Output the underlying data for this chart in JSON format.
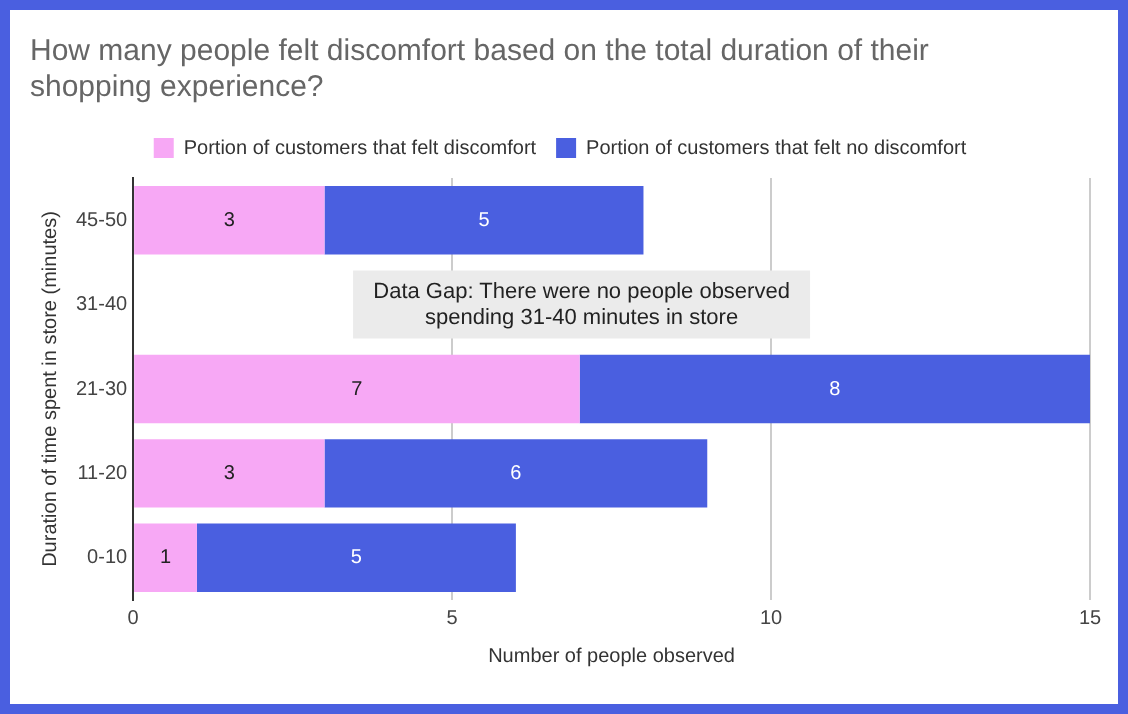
{
  "chart_data": {
    "type": "bar",
    "orientation": "horizontal",
    "stacked": true,
    "title": "How many people felt discomfort based on the total duration of their shopping experience?",
    "xlabel": "Number of people observed",
    "ylabel": "Duration of time spent in store (minutes)",
    "categories": [
      "45-50",
      "31-40",
      "21-30",
      "11-20",
      "0-10"
    ],
    "series": [
      {
        "name": "Portion of customers that felt discomfort",
        "color": "#f7a8f5",
        "values": [
          3,
          null,
          7,
          3,
          1
        ]
      },
      {
        "name": "Portion of customers that felt no discomfort",
        "color": "#4a5fe0",
        "values": [
          5,
          null,
          8,
          6,
          5
        ]
      }
    ],
    "xlim": [
      0,
      15
    ],
    "xticks": [
      0,
      5,
      10,
      15
    ],
    "grid": "x",
    "legend": "top",
    "data_labels": true,
    "annotations": [
      "Data Gap: There were no people observed spending 31-40 minutes in store"
    ]
  }
}
